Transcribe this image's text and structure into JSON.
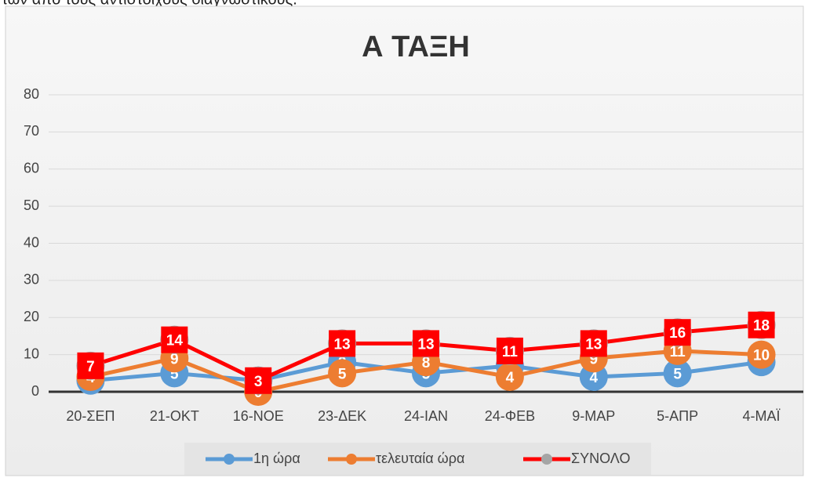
{
  "top_text": "των από τους αντίστοιχους διαγνωστικούς.",
  "chart_data": {
    "type": "line",
    "title": "Α ΤΑΞΗ",
    "categories": [
      "20-ΣΕΠ",
      "21-ΟΚΤ",
      "16-ΝΟΕ",
      "23-ΔΕΚ",
      "24-ΙΑΝ",
      "24-ΦΕΒ",
      "9-ΜΑΡ",
      "5-ΑΠΡ",
      "4-ΜΑΪ"
    ],
    "series": [
      {
        "name": "1η ώρα",
        "color": "#5b9bd5",
        "marker_color": "#5b9bd5",
        "values": [
          3,
          5,
          3,
          8,
          5,
          7,
          4,
          5,
          8
        ]
      },
      {
        "name": "τελευταία ώρα",
        "color": "#ed7d31",
        "marker_color": "#ed7d31",
        "values": [
          4,
          9,
          0,
          5,
          8,
          4,
          9,
          11,
          10
        ]
      },
      {
        "name": "ΣΥΝΟΛΟ",
        "color": "#ff0000",
        "marker_color": "#a5a5a5",
        "label_box": "#ff0000",
        "values": [
          7,
          14,
          3,
          13,
          13,
          11,
          13,
          16,
          18
        ]
      }
    ],
    "ylim": [
      0,
      80
    ],
    "yticks": [
      0,
      10,
      20,
      30,
      40,
      50,
      60,
      70,
      80
    ],
    "grid": true,
    "legend": "bottom"
  }
}
